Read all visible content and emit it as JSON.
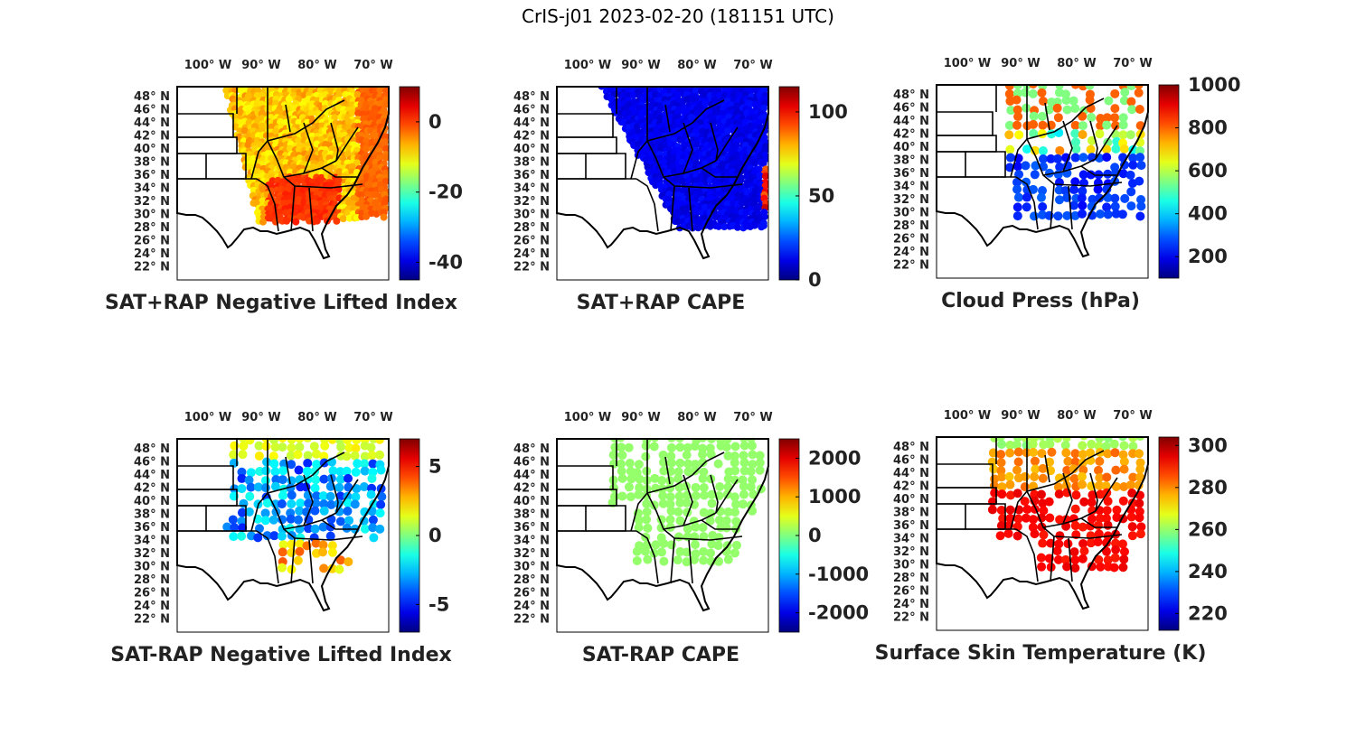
{
  "title": "CrIS-j01 2023-02-20 (181151 UTC)",
  "lon_labels": [
    "100° W",
    "90° W",
    "80° W",
    "70° W"
  ],
  "lat_labels": [
    "48° N",
    "46° N",
    "44° N",
    "42° N",
    "40° N",
    "38° N",
    "36° N",
    "34° N",
    "32° N",
    "30° N",
    "28° N",
    "26° N",
    "24° N",
    "22° N"
  ],
  "colormap": "jet",
  "panels": [
    {
      "id": "sat-rap-neg-li",
      "title": "SAT+RAP Negative Lifted Index",
      "colorbar": {
        "min": -45,
        "max": 10,
        "ticks": [
          "0",
          "-20",
          "-40"
        ],
        "tick_values": [
          0,
          -20,
          -40
        ]
      }
    },
    {
      "id": "sat-rap-cape",
      "title": "SAT+RAP CAPE",
      "colorbar": {
        "min": 0,
        "max": 115,
        "ticks": [
          "100",
          "50",
          "0"
        ],
        "tick_values": [
          100,
          50,
          0
        ]
      }
    },
    {
      "id": "cloud-press",
      "title": "Cloud Press (hPa)",
      "colorbar": {
        "min": 100,
        "max": 1000,
        "ticks": [
          "1000",
          "800",
          "600",
          "400",
          "200"
        ],
        "tick_values": [
          1000,
          800,
          600,
          400,
          200
        ]
      }
    },
    {
      "id": "sat-minus-rap-neg-li",
      "title": "SAT-RAP Negative Lifted Index",
      "colorbar": {
        "min": -7,
        "max": 7,
        "ticks": [
          "5",
          "0",
          "-5"
        ],
        "tick_values": [
          5,
          0,
          -5
        ]
      }
    },
    {
      "id": "sat-minus-rap-cape",
      "title": "SAT-RAP CAPE",
      "colorbar": {
        "min": -2500,
        "max": 2500,
        "ticks": [
          "2000",
          "1000",
          "0",
          "-1000",
          "-2000"
        ],
        "tick_values": [
          2000,
          1000,
          0,
          -1000,
          -2000
        ]
      }
    },
    {
      "id": "surface-skin-temp",
      "title": "Surface Skin Temperature (K)",
      "colorbar": {
        "min": 212,
        "max": 304,
        "ticks": [
          "300",
          "280",
          "260",
          "240",
          "220"
        ],
        "tick_values": [
          300,
          280,
          260,
          240,
          220
        ]
      }
    }
  ]
}
